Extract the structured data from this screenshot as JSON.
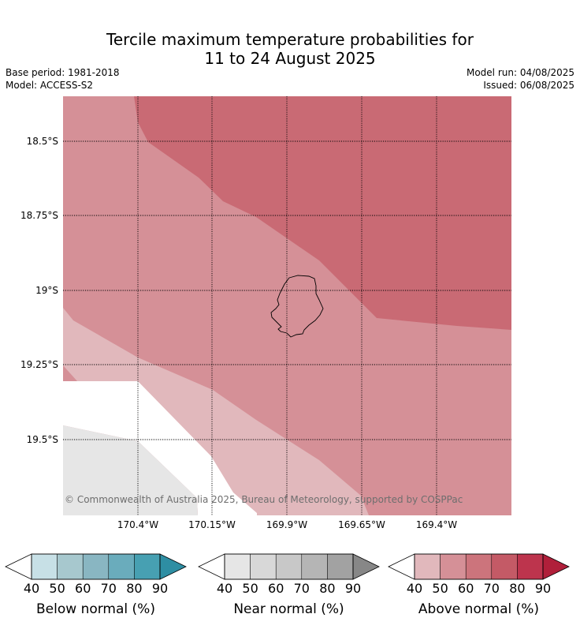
{
  "title": {
    "line1": "Tercile maximum temperature probabilities for",
    "line2": "11 to 24 August 2025"
  },
  "meta": {
    "base_period": "Base period: 1981-2018",
    "model": "Model: ACCESS-S2",
    "model_run": "Model run: 04/08/2025",
    "issued": "Issued: 06/08/2025"
  },
  "map": {
    "lat_labels": [
      "18.5°S",
      "18.75°S",
      "19°S",
      "19.25°S",
      "19.5°S"
    ],
    "lon_labels": [
      "170.4°W",
      "170.15°W",
      "169.9°W",
      "169.65°W",
      "169.4°W"
    ],
    "copyright": "© Commonwealth of Australia 2025, Bureau of Meteorology, supported by COSPPac",
    "colors": {
      "above_50_60": "#d59097",
      "above_60_70": "#c96a74",
      "above_40_50": "#e1b8bc",
      "near_40_50": "#e6e6e6",
      "land_outline": "#000000"
    }
  },
  "colorbars": [
    {
      "name": "below",
      "title": "Below normal (%)",
      "ticks": [
        "40",
        "50",
        "60",
        "70",
        "80",
        "90"
      ],
      "colors": [
        "#c7e0e6",
        "#a7c8ce",
        "#89b6c2",
        "#6aacbc",
        "#47a0b2",
        "#2e8ea3"
      ]
    },
    {
      "name": "near",
      "title": "Near normal (%)",
      "ticks": [
        "40",
        "50",
        "60",
        "70",
        "80",
        "90"
      ],
      "colors": [
        "#e6e6e6",
        "#d8d8d8",
        "#c8c8c8",
        "#b5b5b5",
        "#a2a2a2",
        "#878787"
      ]
    },
    {
      "name": "above",
      "title": "Above normal (%)",
      "ticks": [
        "40",
        "50",
        "60",
        "70",
        "80",
        "90"
      ],
      "colors": [
        "#e1b8bc",
        "#d59097",
        "#cc747c",
        "#c45a66",
        "#bd344d",
        "#b01f3a"
      ]
    }
  ]
}
